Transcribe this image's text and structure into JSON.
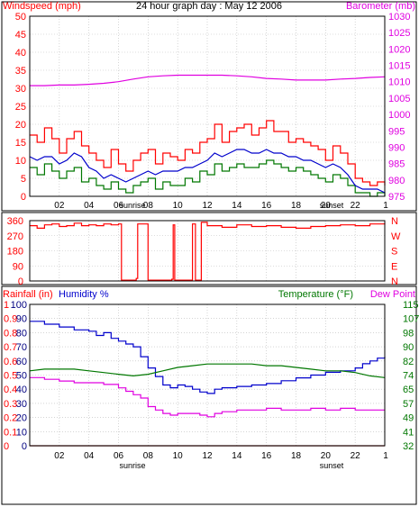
{
  "title": "24 hour graph day : May 12 2006",
  "colors": {
    "red": "#ff0000",
    "magenta": "#e000e0",
    "green": "#007700",
    "blue": "#0000cc",
    "darkred": "#990000",
    "navy": "#000080",
    "grid": "#bbbbbb"
  },
  "x_ticks": [
    "02",
    "04",
    "06",
    "08",
    "10",
    "12",
    "14",
    "16",
    "18",
    "20",
    "22"
  ],
  "x_end_label": "1",
  "sunrise_label": "sunrise",
  "sunset_label": "sunset",
  "chart_data": [
    {
      "type": "line",
      "name": "wind",
      "title": "24 hour graph day : May 12 2006",
      "y_left_label": "Windspeed (mph)",
      "y_right_label": "Barometer (mb)",
      "y_left_ticks": [
        "0",
        "5",
        "10",
        "15",
        "20",
        "25",
        "30",
        "35",
        "40",
        "45",
        "50"
      ],
      "y_right_ticks": [
        "975",
        "980",
        "985",
        "990",
        "995",
        "1000",
        "1005",
        "1010",
        "1015",
        "1020",
        "1025",
        "1030"
      ],
      "ylim_left": [
        0,
        50
      ],
      "ylim_right": [
        975,
        1030
      ],
      "xlim": [
        0,
        24
      ],
      "grid": true,
      "series": [
        {
          "label": "Windspeed",
          "axis": "left",
          "color": "#ff0000",
          "step": true,
          "x": [
            0,
            0.5,
            1,
            1.5,
            2,
            2.5,
            3,
            3.5,
            4,
            4.5,
            5,
            5.5,
            6,
            6.5,
            7,
            7.5,
            8,
            8.5,
            9,
            9.5,
            10,
            10.5,
            11,
            11.5,
            12,
            12.5,
            13,
            13.5,
            14,
            14.5,
            15,
            15.5,
            16,
            16.5,
            17,
            17.5,
            18,
            18.5,
            19,
            19.5,
            20,
            20.5,
            21,
            21.5,
            22,
            22.5,
            23,
            23.5,
            24
          ],
          "y": [
            17,
            15,
            19,
            16,
            12,
            16,
            18,
            14,
            12,
            10,
            8,
            13,
            9,
            7,
            10,
            12,
            13,
            9,
            12,
            11,
            10,
            13,
            12,
            15,
            16,
            20,
            15,
            18,
            19,
            20,
            17,
            19,
            21,
            18,
            18,
            15,
            16,
            15,
            14,
            13,
            10,
            14,
            12,
            9,
            5,
            4,
            3,
            4,
            3
          ]
        },
        {
          "label": "Gust",
          "axis": "left",
          "color": "#007700",
          "step": true,
          "x": [
            0,
            0.5,
            1,
            1.5,
            2,
            2.5,
            3,
            3.5,
            4,
            4.5,
            5,
            5.5,
            6,
            6.5,
            7,
            7.5,
            8,
            8.5,
            9,
            9.5,
            10,
            10.5,
            11,
            11.5,
            12,
            12.5,
            13,
            13.5,
            14,
            14.5,
            15,
            15.5,
            16,
            16.5,
            17,
            17.5,
            18,
            18.5,
            19,
            19.5,
            20,
            20.5,
            21,
            21.5,
            22,
            22.5,
            23,
            23.5,
            24
          ],
          "y": [
            8,
            6,
            9,
            7,
            5,
            7,
            8,
            4,
            5,
            3,
            2,
            4,
            2,
            1,
            3,
            4,
            5,
            2,
            4,
            3,
            3,
            5,
            4,
            7,
            6,
            9,
            7,
            8,
            9,
            8,
            8,
            9,
            10,
            9,
            8,
            7,
            8,
            7,
            6,
            5,
            4,
            6,
            5,
            3,
            1,
            1,
            0,
            1,
            0
          ]
        },
        {
          "label": "Average",
          "axis": "left",
          "color": "#0000cc",
          "step": false,
          "x": [
            0,
            0.5,
            1,
            1.5,
            2,
            2.5,
            3,
            3.5,
            4,
            4.5,
            5,
            5.5,
            6,
            6.5,
            7,
            7.5,
            8,
            8.5,
            9,
            9.5,
            10,
            10.5,
            11,
            11.5,
            12,
            12.5,
            13,
            13.5,
            14,
            14.5,
            15,
            15.5,
            16,
            16.5,
            17,
            17.5,
            18,
            18.5,
            19,
            19.5,
            20,
            20.5,
            21,
            21.5,
            22,
            22.5,
            23,
            23.5,
            24
          ],
          "y": [
            11,
            10,
            11,
            11,
            9,
            10,
            12,
            11,
            8,
            7,
            5,
            6,
            5,
            4,
            5,
            6,
            7,
            6,
            7,
            7,
            7,
            8,
            8,
            9,
            10,
            12,
            11,
            12,
            13,
            13,
            12,
            12,
            13,
            12,
            12,
            11,
            11,
            10,
            10,
            9,
            8,
            9,
            8,
            6,
            3,
            2,
            2,
            2,
            1
          ]
        },
        {
          "label": "Barometer",
          "axis": "right",
          "color": "#e000e0",
          "step": false,
          "x": [
            0,
            1,
            2,
            3,
            4,
            5,
            6,
            7,
            8,
            9,
            10,
            11,
            12,
            13,
            14,
            15,
            16,
            17,
            18,
            19,
            20,
            21,
            22,
            23,
            24
          ],
          "y": [
            1008.8,
            1008.8,
            1009,
            1009,
            1009.2,
            1009.5,
            1010,
            1010.8,
            1011.5,
            1011.8,
            1012,
            1012,
            1012,
            1012,
            1011.8,
            1011.5,
            1011,
            1010.8,
            1010.5,
            1010.5,
            1010.5,
            1010.8,
            1011,
            1011.3,
            1011.5
          ]
        }
      ]
    },
    {
      "type": "line",
      "name": "direction",
      "y_left_ticks": [
        "0",
        "90",
        "180",
        "270",
        "360"
      ],
      "y_right_ticks": [
        "N",
        "E",
        "S",
        "W",
        "N"
      ],
      "ylim": [
        0,
        360
      ],
      "xlim": [
        0,
        24
      ],
      "grid": true,
      "series": [
        {
          "label": "Wind direction",
          "color": "#ff0000",
          "step": true,
          "x": [
            0,
            0.5,
            1,
            1.5,
            2,
            2.5,
            3,
            3.5,
            4,
            4.5,
            5,
            5.5,
            6,
            6.2,
            7,
            7.2,
            7.3,
            8,
            9,
            9.6,
            9.7,
            9.8,
            10,
            10.2,
            10.8,
            11,
            11.2,
            11.5,
            11.6,
            12,
            13,
            14,
            15,
            16,
            17,
            18,
            19,
            20,
            21,
            22,
            23,
            24
          ],
          "y": [
            330,
            315,
            335,
            340,
            325,
            330,
            345,
            330,
            335,
            330,
            340,
            335,
            340,
            5,
            5,
            15,
            340,
            5,
            5,
            10,
            335,
            5,
            5,
            5,
            5,
            340,
            5,
            5,
            350,
            330,
            320,
            335,
            325,
            330,
            320,
            315,
            325,
            330,
            335,
            330,
            340,
            345
          ]
        }
      ]
    },
    {
      "type": "line",
      "name": "temperature",
      "y_left_label": "Rainfall (in)",
      "y_humidity_label": "Humidity %",
      "y_right_label": "Temperature (°F)",
      "y_right2_label": "Dew Point",
      "y_rain_ticks": [
        "0",
        "0.1",
        "0.2",
        "0.3",
        "0.4",
        "0.5",
        "0.6",
        "0.7",
        "0.8",
        "0.9",
        "1"
      ],
      "y_hum_ticks": [
        "0",
        "10",
        "20",
        "30",
        "40",
        "50",
        "60",
        "70",
        "80",
        "90",
        "100"
      ],
      "y_temp_ticks": [
        "32",
        "41",
        "49",
        "57",
        "65",
        "74",
        "82",
        "90",
        "98",
        "107",
        "115"
      ],
      "ylim_left": [
        0,
        100
      ],
      "ylim_right": [
        32,
        115
      ],
      "xlim": [
        0,
        24
      ],
      "grid": true,
      "series": [
        {
          "label": "Humidity",
          "axis": "left",
          "color": "#0000cc",
          "step": true,
          "x": [
            0,
            1,
            2,
            3,
            4,
            4.5,
            5,
            5.5,
            6,
            6.5,
            7,
            7.5,
            8,
            8.5,
            9,
            9.5,
            10,
            10.5,
            11,
            11.5,
            12,
            12.5,
            13,
            14,
            15,
            16,
            17,
            18,
            19,
            20,
            21,
            22,
            22.5,
            23,
            23.5,
            24
          ],
          "y": [
            88,
            86,
            84,
            82,
            81,
            78,
            80,
            76,
            74,
            72,
            70,
            63,
            55,
            49,
            43,
            41,
            43,
            42,
            40,
            38,
            37,
            40,
            41,
            42,
            43,
            44,
            46,
            48,
            50,
            52,
            53,
            55,
            58,
            60,
            62,
            63
          ]
        },
        {
          "label": "Temperature",
          "axis": "right",
          "color": "#007700",
          "step": false,
          "x": [
            0,
            1,
            2,
            3,
            4,
            5,
            6,
            7,
            8,
            9,
            10,
            11,
            12,
            13,
            14,
            15,
            16,
            17,
            18,
            19,
            20,
            21,
            22,
            23,
            24
          ],
          "y": [
            76,
            77,
            77,
            77,
            76,
            75,
            74,
            73,
            74,
            76,
            78,
            79,
            80,
            80,
            80,
            80,
            79,
            79,
            78,
            77,
            76,
            76,
            75,
            73,
            72
          ]
        },
        {
          "label": "Dew Point",
          "axis": "right",
          "color": "#e000e0",
          "step": true,
          "x": [
            0,
            1,
            2,
            3,
            4,
            5,
            6,
            6.5,
            7,
            7.5,
            8,
            8.5,
            9,
            9.5,
            10,
            11,
            11.5,
            12,
            12.5,
            13,
            14,
            15,
            16,
            17,
            18,
            19,
            20,
            21,
            22,
            23,
            24
          ],
          "y": [
            72,
            71,
            70,
            69,
            69,
            68,
            66,
            64,
            62,
            60,
            55,
            53,
            51,
            50,
            51,
            51,
            50,
            49,
            51,
            52,
            53,
            53,
            54,
            53,
            53,
            54,
            53,
            54,
            53,
            53,
            53
          ]
        },
        {
          "label": "Rainfall",
          "axis": "rain",
          "color": "#990000",
          "step": false,
          "x": [
            0,
            24
          ],
          "y": [
            0,
            0
          ]
        }
      ]
    }
  ]
}
